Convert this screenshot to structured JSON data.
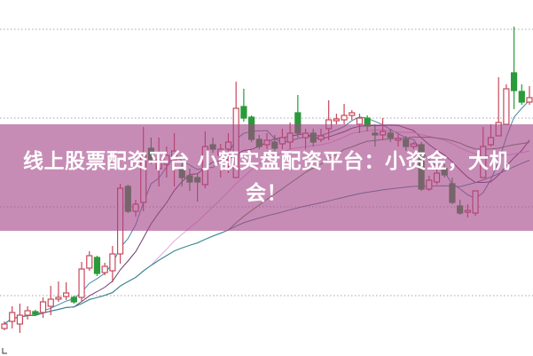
{
  "banner": {
    "title": "线上股票配资平台 小额实盘配资平台：小资金，大机会！"
  },
  "chart_data": {
    "type": "candlestick",
    "title": "",
    "xlabel": "",
    "ylabel": "",
    "ylim": [
      3.3,
      43.3
    ],
    "gridlines_y": [
      10,
      20,
      30,
      40
    ],
    "grid": "horizontal dotted",
    "colors": {
      "up": "#c8485a",
      "down": "#2a9a3a",
      "grid": "#b8b8b8",
      "banner": "#c68cb5"
    },
    "moving_averages": [
      {
        "period": 5,
        "color": "#4a86a8"
      },
      {
        "period": 10,
        "color": "#6a3d6a"
      },
      {
        "period": 20,
        "color": "#e6a6de"
      },
      {
        "period": 30,
        "color": "#4f8f4f"
      },
      {
        "period": 60,
        "color": "#3a8aa0"
      }
    ],
    "candles": [
      [
        6.3,
        7.1,
        6.1,
        6.8
      ],
      [
        7.1,
        8.8,
        6.3,
        8.1
      ],
      [
        6.8,
        9.1,
        5.8,
        7.8
      ],
      [
        7.8,
        8.8,
        7.3,
        8.3
      ],
      [
        8.2,
        8.4,
        7.7,
        7.9
      ],
      [
        8.1,
        9.8,
        7.5,
        9.3
      ],
      [
        8.8,
        11.1,
        7.8,
        9.6
      ],
      [
        9.6,
        11.6,
        9.3,
        9.8
      ],
      [
        9.9,
        11.5,
        9.5,
        10.3
      ],
      [
        9.8,
        10.0,
        9.1,
        9.3
      ],
      [
        9.8,
        13.8,
        9.3,
        13.0
      ],
      [
        13.1,
        15.0,
        12.8,
        14.5
      ],
      [
        14.3,
        14.5,
        12.2,
        12.5
      ],
      [
        12.6,
        13.7,
        12.3,
        13.3
      ],
      [
        12.8,
        15.6,
        11.5,
        14.7
      ],
      [
        14.7,
        22.6,
        13.6,
        22.1
      ],
      [
        22.3,
        22.5,
        19.3,
        19.5
      ],
      [
        19.5,
        20.8,
        18.9,
        20.3
      ],
      [
        20.5,
        29.0,
        19.5,
        25.8
      ],
      [
        26.6,
        27.8,
        24.8,
        25.3
      ],
      [
        24.3,
        27.8,
        22.3,
        25.3
      ],
      [
        24.8,
        26.8,
        23.3,
        25.8
      ],
      [
        25.3,
        28.3,
        22.3,
        26.3
      ],
      [
        24.3,
        25.0,
        22.3,
        23.3
      ],
      [
        23.5,
        24.3,
        21.8,
        22.8
      ],
      [
        23.3,
        23.8,
        20.6,
        22.8
      ],
      [
        22.5,
        28.5,
        22.1,
        26.8
      ],
      [
        27.0,
        27.8,
        26.1,
        26.5
      ],
      [
        25.8,
        27.1,
        23.3,
        26.5
      ],
      [
        26.5,
        28.3,
        23.8,
        27.3
      ],
      [
        23.3,
        34.1,
        23.3,
        31.1
      ],
      [
        31.3,
        33.3,
        29.6,
        30.0
      ],
      [
        30.1,
        30.3,
        27.3,
        27.6
      ],
      [
        27.6,
        28.1,
        26.5,
        26.8
      ],
      [
        27.0,
        28.3,
        26.5,
        27.5
      ],
      [
        27.3,
        28.1,
        26.3,
        26.6
      ],
      [
        27.1,
        28.8,
        26.5,
        27.8
      ],
      [
        27.3,
        29.5,
        26.5,
        28.3
      ],
      [
        30.6,
        32.6,
        27.8,
        28.3
      ],
      [
        27.8,
        28.8,
        26.5,
        28.3
      ],
      [
        28.3,
        28.8,
        26.8,
        27.3
      ],
      [
        27.6,
        28.8,
        27.3,
        28.0
      ],
      [
        28.8,
        32.0,
        27.5,
        29.8
      ],
      [
        29.7,
        30.5,
        29.3,
        29.9
      ],
      [
        29.8,
        31.6,
        29.3,
        30.3
      ],
      [
        30.3,
        30.9,
        29.8,
        30.6
      ],
      [
        29.3,
        30.5,
        28.3,
        30.0
      ],
      [
        30.0,
        30.3,
        28.5,
        29.1
      ],
      [
        28.3,
        29.3,
        26.8,
        28.1
      ],
      [
        28.1,
        30.0,
        27.5,
        28.5
      ],
      [
        28.3,
        28.8,
        27.3,
        27.8
      ],
      [
        27.5,
        28.3,
        26.8,
        27.7
      ],
      [
        27.6,
        28.0,
        26.3,
        26.8
      ],
      [
        26.8,
        27.3,
        26.5,
        27.1
      ],
      [
        27.0,
        27.3,
        21.8,
        22.0
      ],
      [
        22.0,
        23.5,
        21.8,
        23.0
      ],
      [
        22.8,
        25.3,
        22.5,
        23.8
      ],
      [
        24.3,
        24.8,
        23.3,
        23.6
      ],
      [
        22.6,
        23.3,
        20.3,
        20.5
      ],
      [
        20.1,
        20.8,
        19.1,
        19.3
      ],
      [
        19.4,
        20.3,
        18.8,
        19.6
      ],
      [
        19.3,
        21.8,
        19.0,
        21.8
      ],
      [
        23.3,
        29.0,
        23.3,
        26.8
      ],
      [
        27.0,
        29.3,
        26.8,
        27.8
      ],
      [
        28.0,
        34.6,
        28.0,
        29.5
      ],
      [
        29.3,
        33.8,
        29.3,
        33.3
      ],
      [
        35.1,
        40.3,
        31.0,
        33.1
      ],
      [
        33.0,
        33.8,
        31.5,
        31.8
      ],
      [
        31.8,
        33.6,
        31.5,
        32.3
      ]
    ],
    "candle_fields": [
      "open",
      "high",
      "low",
      "close"
    ]
  }
}
